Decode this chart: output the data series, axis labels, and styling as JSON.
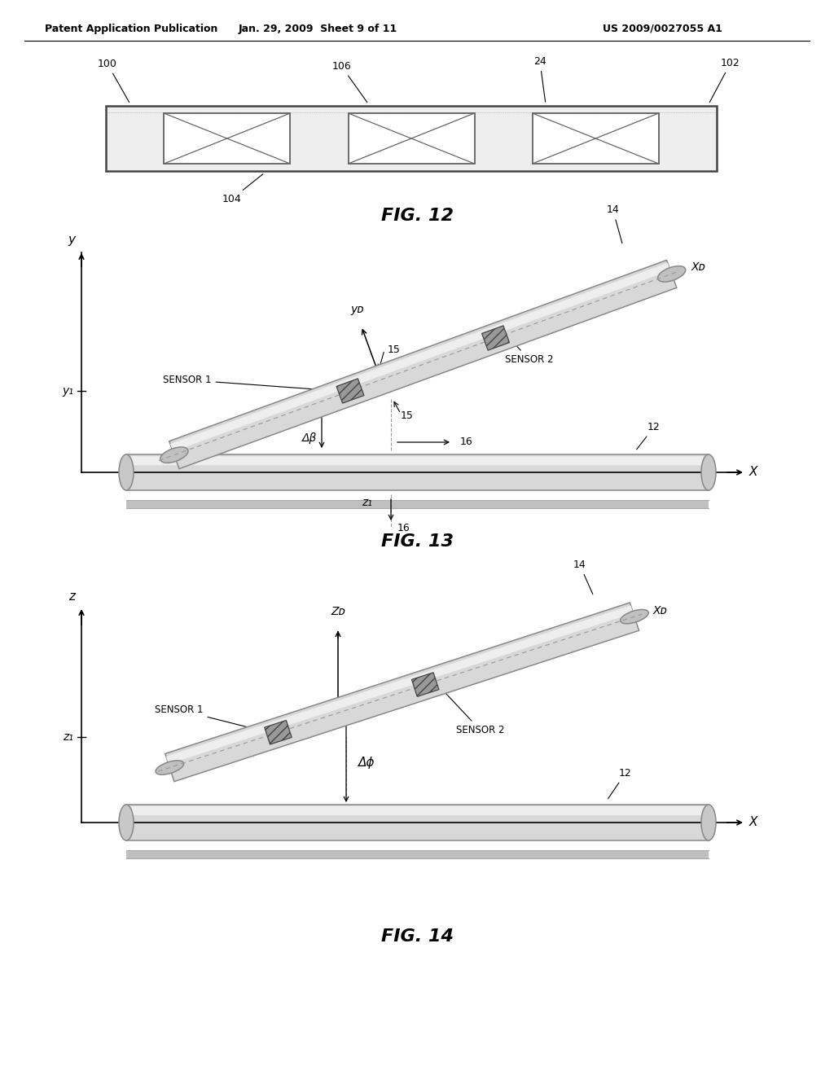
{
  "background_color": "#ffffff",
  "header_left": "Patent Application Publication",
  "header_mid": "Jan. 29, 2009  Sheet 9 of 11",
  "header_right": "US 2009/0027055 A1",
  "fig12_label": "FIG. 12",
  "fig13_label": "FIG. 13",
  "fig14_label": "FIG. 14",
  "pipe_color": "#d4d4d4",
  "pipe_edge": "#888888",
  "pipe_shadow": "#bbbbbb",
  "sensor_color": "#888888",
  "sensor_hatch": "///",
  "line_color": "#333333"
}
